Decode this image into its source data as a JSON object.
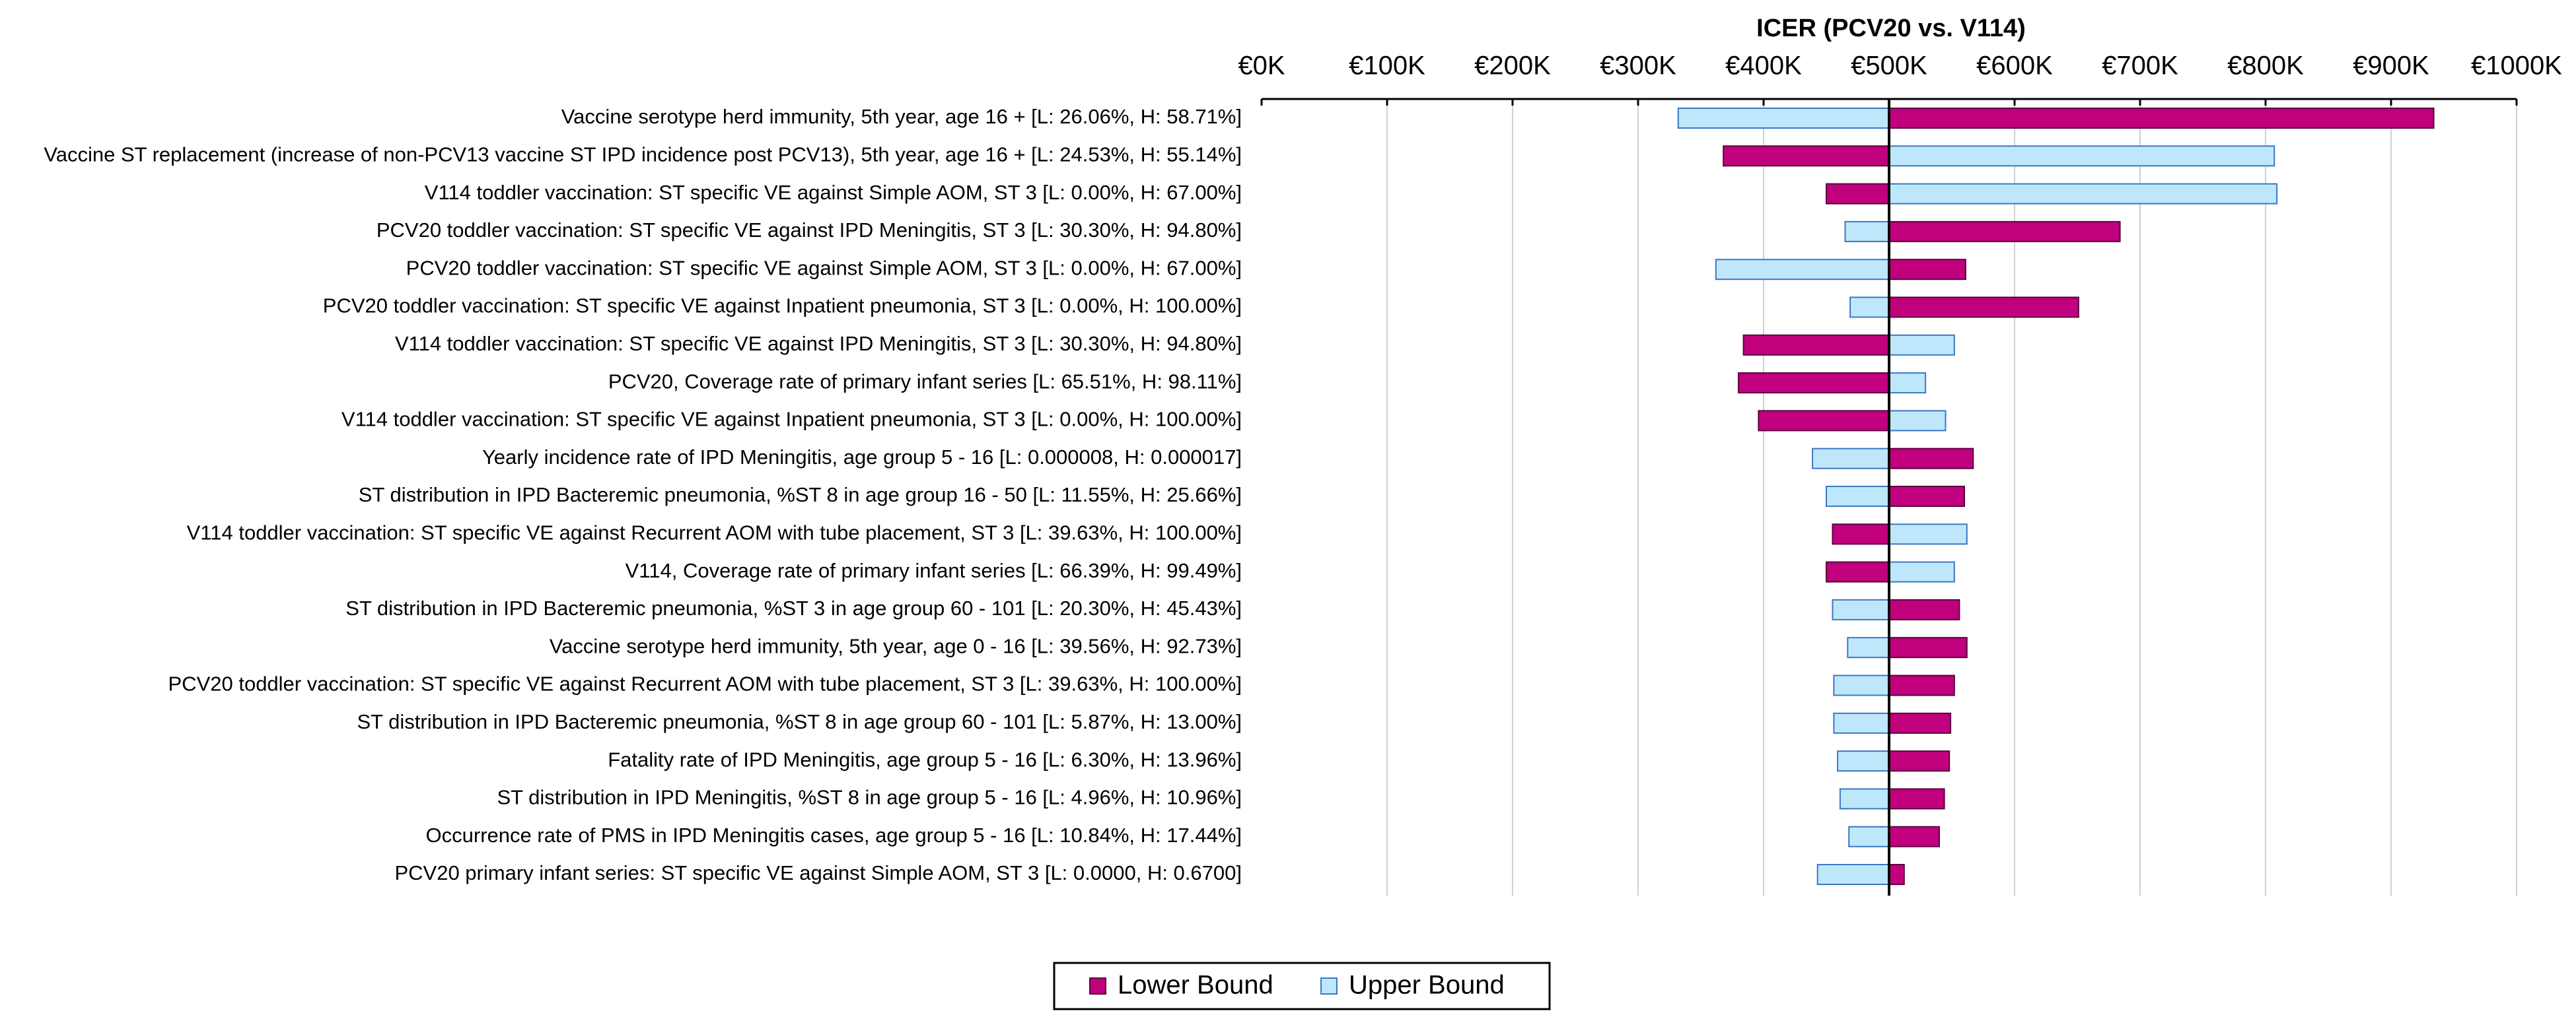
{
  "chart_data": {
    "type": "tornado",
    "title": "ICER (PCV20 vs. V114)",
    "categories": [
      "Vaccine serotype herd immunity, 5th year, age 16 +  [L: 26.06%, H: 58.71%]",
      "Vaccine ST replacement (increase of non-PCV13 vaccine ST IPD incidence post PCV13), 5th year, age 16 + [L: 24.53%, H: 55.14%]",
      "V114 toddler vaccination: ST specific VE against Simple AOM, ST 3 [L: 0.00%, H: 67.00%]",
      "PCV20 toddler vaccination: ST specific VE against IPD Meningitis, ST 3 [L: 30.30%, H: 94.80%]",
      "PCV20 toddler vaccination: ST specific VE against Simple AOM, ST 3 [L: 0.00%, H: 67.00%]",
      "PCV20 toddler vaccination: ST specific VE against Inpatient pneumonia, ST 3 [L: 0.00%, H: 100.00%]",
      "V114 toddler vaccination: ST specific VE against IPD Meningitis, ST 3 [L: 30.30%, H: 94.80%]",
      "PCV20, Coverage rate of primary infant series [L: 65.51%, H: 98.11%]",
      "V114 toddler vaccination: ST specific VE against Inpatient pneumonia, ST 3 [L: 0.00%, H: 100.00%]",
      "Yearly incidence rate of IPD Meningitis, age group 5 - 16 [L: 0.000008, H: 0.000017]",
      "ST distribution in IPD Bacteremic pneumonia, %ST 8 in age group 16 - 50 [L: 11.55%, H: 25.66%]",
      "V114 toddler vaccination: ST specific VE against Recurrent AOM with tube placement, ST 3 [L: 39.63%, H: 100.00%]",
      "V114, Coverage rate of primary infant series [L: 66.39%, H: 99.49%]",
      "ST distribution in IPD Bacteremic pneumonia, %ST 3 in age group 60 - 101 [L: 20.30%, H: 45.43%]",
      "Vaccine serotype herd immunity, 5th year, age 0 - 16 [L: 39.56%, H: 92.73%]",
      "PCV20 toddler vaccination: ST specific VE against Recurrent AOM with tube placement, ST 3 [L: 39.63%, H: 100.00%]",
      "ST distribution in IPD Bacteremic pneumonia, %ST 8 in age group 60 - 101 [L: 5.87%, H: 13.00%]",
      "Fatality rate of IPD Meningitis, age group 5 - 16 [L: 6.30%, H: 13.96%]",
      "ST distribution in IPD Meningitis, %ST 8 in age group 5 - 16 [L: 4.96%, H: 10.96%]",
      "Occurrence rate of PMS in IPD Meningitis cases, age group 5 - 16 [L: 10.84%, H: 17.44%]",
      "PCV20 primary infant series: ST specific VE against Simple AOM, ST 3 [L: 0.0000, H: 0.6700]"
    ],
    "baseline": 500000,
    "series": [
      {
        "name": "Lower Bound",
        "color": "#c0007c",
        "edge": "#5a0040",
        "values": [
          934000,
          368000,
          450000,
          684000,
          561000,
          651000,
          384000,
          380000,
          396000,
          567000,
          560000,
          455000,
          450000,
          556000,
          562000,
          552000,
          549000,
          548000,
          544000,
          540000,
          512000
        ]
      },
      {
        "name": "Upper Bound",
        "color": "#bfe7fb",
        "edge": "#3a78c4",
        "values": [
          332000,
          807000,
          809000,
          465000,
          362000,
          469000,
          552000,
          529000,
          545000,
          439000,
          450000,
          562000,
          552000,
          455000,
          467000,
          456000,
          456000,
          459000,
          461000,
          468000,
          443000
        ]
      }
    ],
    "xlim": [
      0,
      1000000
    ],
    "xticks": [
      {
        "value": 0,
        "label": "€0K"
      },
      {
        "value": 100000,
        "label": "€100K"
      },
      {
        "value": 200000,
        "label": "€200K"
      },
      {
        "value": 300000,
        "label": "€300K"
      },
      {
        "value": 400000,
        "label": "€400K"
      },
      {
        "value": 500000,
        "label": "€500K"
      },
      {
        "value": 600000,
        "label": "€600K"
      },
      {
        "value": 700000,
        "label": "€700K"
      },
      {
        "value": 800000,
        "label": "€800K"
      },
      {
        "value": 900000,
        "label": "€900K"
      },
      {
        "value": 1000000,
        "label": "€1000K"
      }
    ],
    "grid": true,
    "legend": "bottom"
  }
}
